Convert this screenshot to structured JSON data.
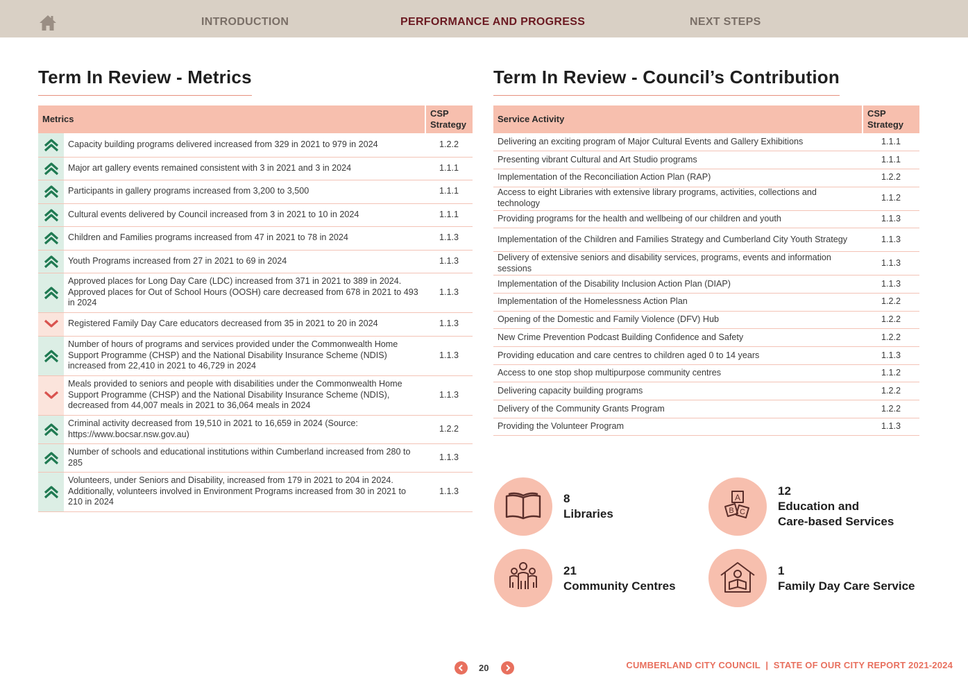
{
  "nav": {
    "home_icon": "home-icon",
    "items": [
      "INTRODUCTION",
      "PERFORMANCE AND PROGRESS",
      "NEXT STEPS"
    ],
    "active": "PERFORMANCE AND PROGRESS"
  },
  "metrics": {
    "title": "Term In Review - Metrics",
    "headers": [
      "Metrics",
      "CSP Strategy"
    ],
    "rows": [
      {
        "trend": "up",
        "text": "Capacity building programs delivered increased from 329 in 2021 to 979 in 2024",
        "code": "1.2.2"
      },
      {
        "trend": "up",
        "text": "Major art gallery events remained consistent with 3 in 2021 and 3 in 2024",
        "code": "1.1.1"
      },
      {
        "trend": "up",
        "text": "Participants in gallery programs increased from 3,200 to 3,500",
        "code": "1.1.1"
      },
      {
        "trend": "up",
        "text": "Cultural events delivered by Council increased from 3 in 2021 to 10 in 2024",
        "code": "1.1.1"
      },
      {
        "trend": "up",
        "text": "Children and Families programs increased from 47 in 2021 to 78 in 2024",
        "code": "1.1.3"
      },
      {
        "trend": "up",
        "text": "Youth Programs increased from 27 in 2021 to 69 in 2024",
        "code": "1.1.3"
      },
      {
        "trend": "up",
        "text": "Approved places for Long Day Care (LDC) increased from 371 in 2021 to 389 in 2024. Approved places for Out of School Hours (OOSH) care decreased from 678 in 2021 to 493 in 2024",
        "code": "1.1.3"
      },
      {
        "trend": "down",
        "text": "Registered Family Day Care educators decreased from 35 in 2021 to 20 in 2024",
        "code": "1.1.3"
      },
      {
        "trend": "up",
        "text": "Number of hours of programs and services provided under the Commonwealth Home Support Programme (CHSP) and the National Disability Insurance Scheme (NDIS) increased from 22,410 in 2021 to 46,729 in 2024",
        "code": "1.1.3"
      },
      {
        "trend": "down",
        "text": "Meals provided to seniors and people with disabilities under the Commonwealth Home Support Programme (CHSP) and the National Disability Insurance Scheme (NDIS), decreased from 44,007 meals in 2021 to 36,064 meals in 2024",
        "code": "1.1.3"
      },
      {
        "trend": "up",
        "text": "Criminal activity decreased from 19,510 in 2021 to 16,659 in 2024 (Source: https://www.bocsar.nsw.gov.au)",
        "code": "1.2.2"
      },
      {
        "trend": "up",
        "text": "Number of schools and educational institutions within Cumberland increased from 280 to 285",
        "code": "1.1.3"
      },
      {
        "trend": "up",
        "text": "Volunteers, under Seniors and Disability, increased from 179 in 2021 to 204 in 2024. Additionally, volunteers involved in Environment Programs increased from 30 in 2021 to 210 in 2024",
        "code": "1.1.3"
      }
    ]
  },
  "services": {
    "title": "Term In Review - Council’s Contribution",
    "headers": [
      "Service Activity",
      "CSP Strategy"
    ],
    "rows": [
      {
        "text": "Delivering an exciting program of Major Cultural Events and Gallery Exhibitions",
        "code": "1.1.1"
      },
      {
        "text": "Presenting vibrant Cultural and Art Studio programs",
        "code": "1.1.1"
      },
      {
        "text": "Implementation of the Reconciliation Action Plan (RAP)",
        "code": "1.2.2"
      },
      {
        "text": "Access to eight Libraries with extensive library programs, activities, collections and technology",
        "code": "1.1.2"
      },
      {
        "text": "Providing programs for the health and wellbeing of our children and youth",
        "code": "1.1.3"
      },
      {
        "text": "Implementation of the Children and Families Strategy and Cumberland City Youth Strategy",
        "code": "1.1.3"
      },
      {
        "text": "Delivery of extensive seniors and disability services, programs, events and information sessions",
        "code": "1.1.3"
      },
      {
        "text": "Implementation of the Disability Inclusion Action Plan (DIAP)",
        "code": "1.1.3"
      },
      {
        "text": "Implementation of the Homelessness Action Plan",
        "code": "1.2.2"
      },
      {
        "text": "Opening of the Domestic and Family Violence (DFV) Hub",
        "code": "1.2.2"
      },
      {
        "text": "New Crime Prevention Podcast Building Confidence and Safety",
        "code": "1.2.2"
      },
      {
        "text": "Providing education and care centres to children aged 0 to 14 years",
        "code": "1.1.3"
      },
      {
        "text": "Access to one stop shop multipurpose community centres",
        "code": "1.1.2"
      },
      {
        "text": "Delivering capacity building programs",
        "code": "1.2.2"
      },
      {
        "text": "Delivery of the Community Grants Program",
        "code": "1.2.2"
      },
      {
        "text": "Providing the Volunteer Program",
        "code": "1.1.3"
      }
    ]
  },
  "stats": [
    {
      "icon": "book-icon",
      "number": "8",
      "label": "Libraries"
    },
    {
      "icon": "alphabet-blocks-icon",
      "number": "12",
      "label": "Education and",
      "label2": "Care-based Services"
    },
    {
      "icon": "family-group-icon",
      "number": "21",
      "label": "Community Centres"
    },
    {
      "icon": "family-day-care-house-icon",
      "number": "1",
      "label": "Family Day Care Service"
    }
  ],
  "footer": {
    "page": "20",
    "prev_icon": "chevron-left-icon",
    "next_icon": "chevron-right-icon",
    "text": "CUMBERLAND CITY COUNCIL  |  STATE OF OUR CITY REPORT 2021-2024"
  },
  "colors": {
    "nav_bg": "#d9d0c5",
    "nav_active": "#6b1a22",
    "header_peach": "#f7bfae",
    "accent_orange": "#e8705e",
    "up_green": "#1f7a52",
    "down_red": "#d9534f"
  }
}
